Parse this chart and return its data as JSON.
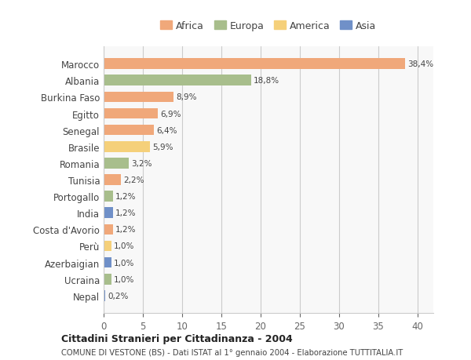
{
  "countries": [
    "Marocco",
    "Albania",
    "Burkina Faso",
    "Egitto",
    "Senegal",
    "Brasile",
    "Romania",
    "Tunisia",
    "Portogallo",
    "India",
    "Costa d'Avorio",
    "Perù",
    "Azerbaigian",
    "Ucraina",
    "Nepal"
  ],
  "values": [
    38.4,
    18.8,
    8.9,
    6.9,
    6.4,
    5.9,
    3.2,
    2.2,
    1.2,
    1.2,
    1.2,
    1.0,
    1.0,
    1.0,
    0.2
  ],
  "labels": [
    "38,4%",
    "18,8%",
    "8,9%",
    "6,9%",
    "6,4%",
    "5,9%",
    "3,2%",
    "2,2%",
    "1,2%",
    "1,2%",
    "1,2%",
    "1,0%",
    "1,0%",
    "1,0%",
    "0,2%"
  ],
  "continents": [
    "Africa",
    "Europa",
    "Africa",
    "Africa",
    "Africa",
    "America",
    "Europa",
    "Africa",
    "Europa",
    "Asia",
    "Africa",
    "America",
    "Asia",
    "Europa",
    "Asia"
  ],
  "continent_colors": {
    "Africa": "#F0A87A",
    "Europa": "#A8BE8C",
    "America": "#F5D07A",
    "Asia": "#7090C8"
  },
  "legend_order": [
    "Africa",
    "Europa",
    "America",
    "Asia"
  ],
  "title_bold": "Cittadini Stranieri per Cittadinanza - 2004",
  "subtitle": "COMUNE DI VESTONE (BS) - Dati ISTAT al 1° gennaio 2004 - Elaborazione TUTTITALIA.IT",
  "xlim": [
    0,
    42
  ],
  "xticks": [
    0,
    5,
    10,
    15,
    20,
    25,
    30,
    35,
    40
  ],
  "background_color": "#FFFFFF",
  "grid_color": "#CCCCCC"
}
